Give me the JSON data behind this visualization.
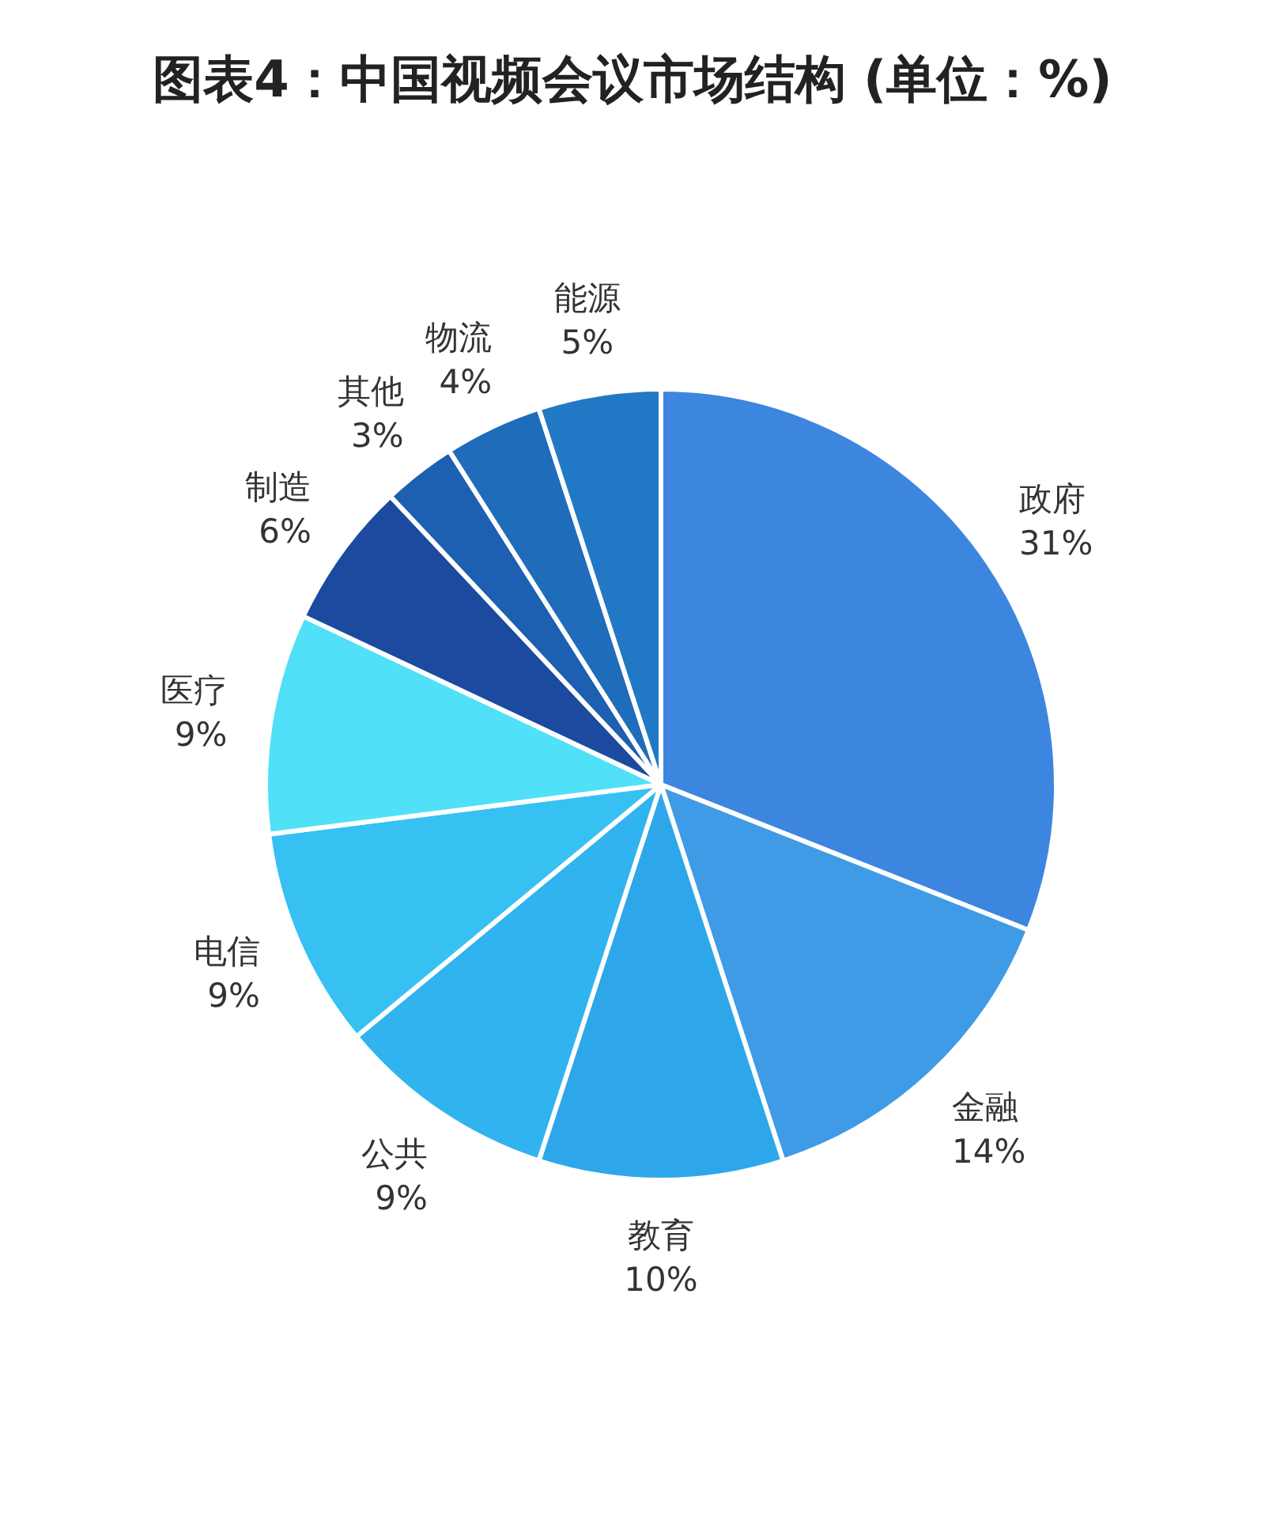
{
  "chart_data": {
    "type": "pie",
    "title": "图表4：中国视频会议市场结构 (单位：%)",
    "categories": [
      "政府",
      "金融",
      "教育",
      "公共",
      "电信",
      "医疗",
      "制造",
      "其他",
      "物流",
      "能源"
    ],
    "values": [
      31,
      14,
      10,
      9,
      9,
      9,
      6,
      3,
      4,
      5
    ],
    "value_labels": [
      "31%",
      "14%",
      "10%",
      "9%",
      "9%",
      "9%",
      "6%",
      "3%",
      "4%",
      "5%"
    ],
    "colors": [
      "#3d86e0",
      "#3f9be6",
      "#2ea7ea",
      "#30b3ee",
      "#36c1f2",
      "#50e0f8",
      "#1b4a9f",
      "#1d5fb0",
      "#1f6cbb",
      "#2179c5"
    ]
  }
}
